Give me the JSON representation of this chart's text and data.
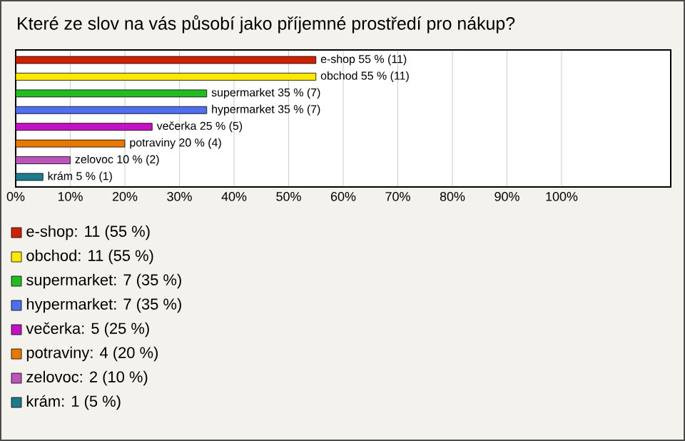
{
  "chart_data": {
    "type": "bar",
    "orientation": "horizontal",
    "title": "Které ze slov na vás působí jako příjemné prostředí pro nákup?",
    "categories": [
      null,
      null,
      null,
      null,
      null,
      null,
      null,
      null
    ],
    "values": [
      55,
      55,
      35,
      35,
      25,
      20,
      10,
      5
    ],
    "colors": [
      "#cc2200",
      "#ffe800",
      "#22bb22",
      "#4f6fef",
      "#c511c5",
      "#e87800",
      "#bb55bb",
      "#1f7a8c"
    ],
    "value_labels": [
      "e-shop 55 % (11)",
      "obchod 55 % (11)",
      "supermarket 35 % (7)",
      "hypermarket 35 % (7)",
      "večerka 25 % (5)",
      "potraviny 20 % (4)",
      "zelovoc 10 % (2)",
      "krám 5 % (1)"
    ],
    "annotations": [
      "e-shop: 11 (55 %)",
      "obchod: 11 (55 %)",
      "supermarket: 7 (35 %)",
      "hypermarket: 7 (35 %)",
      "večerka: 5 (25 %)",
      "potraviny: 4 (20 %)",
      "zelovoc: 2 (10 %)",
      "krám: 1 (5 %)"
    ],
    "xlim": [
      0,
      120
    ],
    "xticks": [
      {
        "value": 0,
        "label": "0%"
      },
      {
        "value": 10,
        "label": "10%"
      },
      {
        "value": 20,
        "label": "20%"
      },
      {
        "value": 30,
        "label": "30%"
      },
      {
        "value": 40,
        "label": "40%"
      },
      {
        "value": 50,
        "label": "50%"
      },
      {
        "value": 60,
        "label": "60%"
      },
      {
        "value": 70,
        "label": "70%"
      },
      {
        "value": 80,
        "label": "80%"
      },
      {
        "value": 90,
        "label": "90%"
      },
      {
        "value": 100,
        "label": "100%"
      }
    ],
    "grid": "x",
    "tick_labels": "x"
  }
}
